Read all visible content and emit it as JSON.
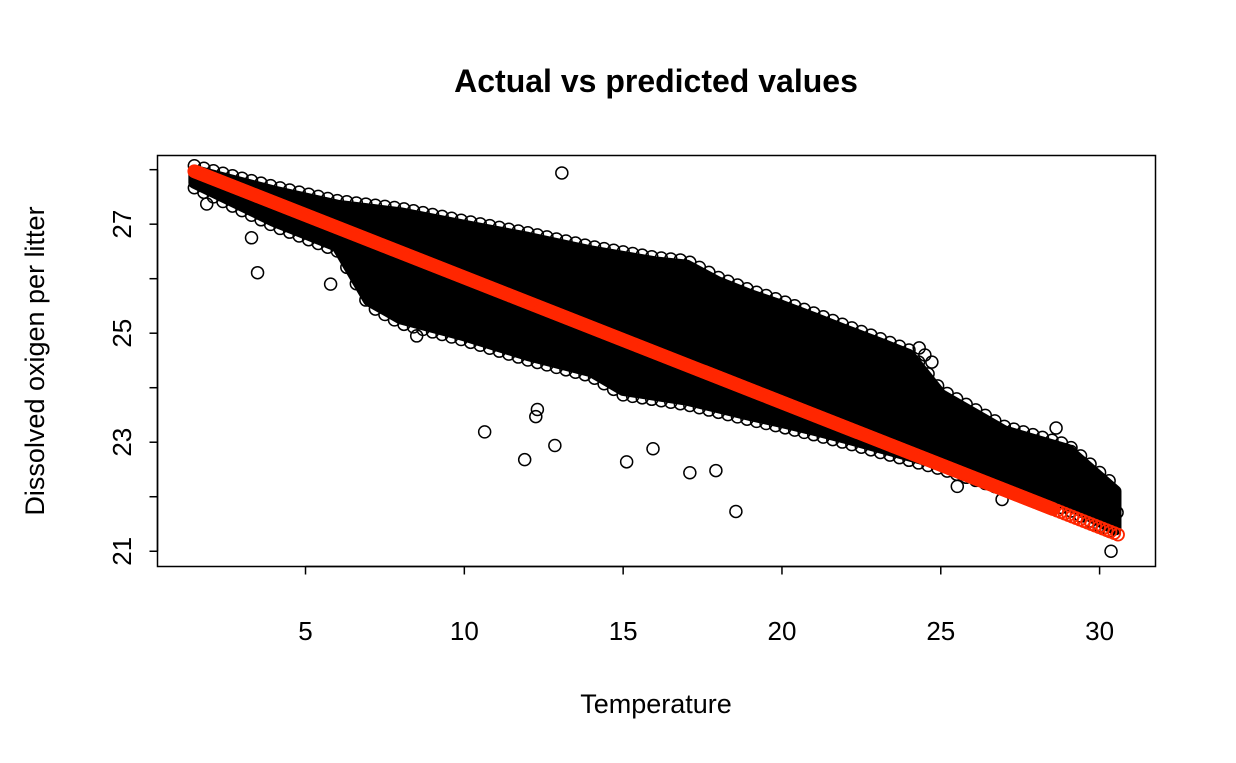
{
  "chart_data": {
    "type": "scatter",
    "title": "Actual vs predicted values",
    "xlabel": "Temperature",
    "ylabel": "Dissolved oxigen per litter",
    "xlim": [
      0.34,
      31.76
    ],
    "ylim": [
      20.72,
      28.26
    ],
    "xticks": [
      5,
      10,
      15,
      20,
      25,
      30
    ],
    "xtick_labels": [
      "5",
      "10",
      "15",
      "20",
      "25",
      "30"
    ],
    "yticks": [
      21,
      22,
      23,
      24,
      25,
      26,
      27,
      28
    ],
    "ytick_labels": [
      "21",
      "23",
      "25",
      "27"
    ],
    "ytick_label_values": [
      21,
      23,
      25,
      27
    ],
    "grid": false,
    "legend": "none",
    "series": [
      {
        "role": "actual",
        "marker": "open-circle",
        "color": "#000000",
        "dense_band": {
          "x": [
            1.5,
            4,
            6,
            7,
            8,
            10,
            12,
            14,
            15,
            16,
            17,
            18,
            19,
            20,
            21,
            22,
            23,
            24,
            25,
            27,
            29,
            30.5
          ],
          "upper": [
            27.98,
            27.6,
            27.34,
            27.27,
            27.2,
            26.97,
            26.75,
            26.5,
            26.4,
            26.3,
            26.24,
            25.93,
            25.7,
            25.5,
            25.28,
            25.05,
            24.83,
            24.6,
            23.87,
            23.2,
            22.86,
            22.1
          ],
          "lower": [
            27.76,
            27.06,
            26.6,
            25.6,
            25.27,
            24.96,
            24.6,
            24.3,
            23.96,
            23.87,
            23.78,
            23.64,
            23.5,
            23.37,
            23.23,
            23.08,
            22.92,
            22.76,
            22.6,
            22.22,
            21.86,
            21.4
          ]
        },
        "outliers": [
          [
            13.07,
            27.94
          ],
          [
            1.89,
            27.37
          ],
          [
            3.49,
            26.11
          ],
          [
            3.3,
            26.75
          ],
          [
            5.79,
            25.9
          ],
          [
            8.5,
            24.95
          ],
          [
            10.64,
            23.19
          ],
          [
            11.9,
            22.68
          ],
          [
            12.85,
            22.94
          ],
          [
            15.11,
            22.64
          ],
          [
            12.25,
            23.47
          ],
          [
            12.3,
            23.6
          ],
          [
            18.55,
            21.73
          ],
          [
            15.94,
            22.88
          ],
          [
            17.1,
            22.44
          ],
          [
            17.92,
            22.48
          ],
          [
            18.68,
            25.73
          ],
          [
            16.95,
            26.2
          ],
          [
            20.0,
            25.27
          ],
          [
            24.32,
            24.73
          ],
          [
            24.72,
            24.47
          ],
          [
            24.5,
            24.6
          ],
          [
            25.52,
            22.19
          ],
          [
            26.93,
            21.95
          ],
          [
            28.63,
            23.26
          ],
          [
            29.1,
            22.83
          ],
          [
            30.36,
            21.0
          ],
          [
            30.55,
            21.71
          ],
          [
            30.02,
            22.19
          ],
          [
            29.5,
            22.3
          ],
          [
            28.2,
            22.6
          ],
          [
            27.5,
            22.9
          ]
        ]
      },
      {
        "role": "predicted",
        "marker": "open-circle",
        "color": "#FF2600",
        "x_range": [
          1.5,
          30.6
        ],
        "y_at_range": [
          27.97,
          21.3
        ]
      }
    ]
  }
}
